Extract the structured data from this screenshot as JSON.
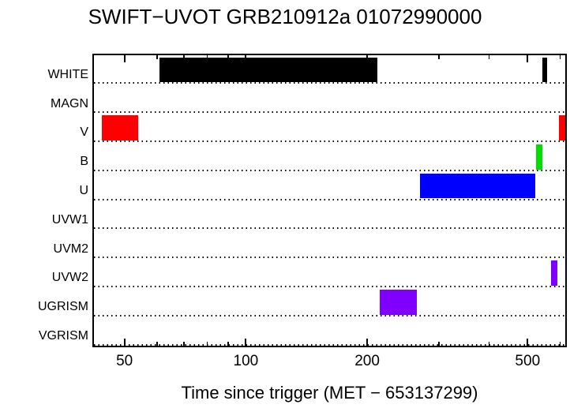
{
  "chart_data": {
    "type": "timeline",
    "title": "SWIFT−UVOT GRB210912a 01072990000",
    "xlabel": "Time since trigger (MET − 653137299)",
    "x_scale": "log",
    "x_range": [
      42,
      620
    ],
    "x_major_ticks": [
      50,
      100,
      200,
      500
    ],
    "x_minor_ticks": [
      60,
      70,
      80,
      90,
      300,
      400,
      600
    ],
    "grid": "dotted-horizontal",
    "legend": "none",
    "colors": {
      "white_filter": "#000000",
      "v_filter": "#ff0000",
      "b_filter": "#00dd00",
      "u_filter": "#0000ff",
      "uv_grism": "#7f00ff"
    },
    "rows": [
      {
        "label": "WHITE",
        "color": "#000000",
        "intervals": [
          [
            61,
            212
          ],
          [
            545,
            560
          ]
        ]
      },
      {
        "label": "MAGN",
        "color": "#000000",
        "intervals": []
      },
      {
        "label": "V",
        "color": "#ff0000",
        "intervals": [
          [
            44,
            54
          ],
          [
            598,
            620
          ]
        ]
      },
      {
        "label": "B",
        "color": "#00dd00",
        "intervals": [
          [
            525,
            544
          ]
        ]
      },
      {
        "label": "U",
        "color": "#0000ff",
        "intervals": [
          [
            271,
            523
          ]
        ]
      },
      {
        "label": "UVW1",
        "color": "#000000",
        "intervals": []
      },
      {
        "label": "UVM2",
        "color": "#000000",
        "intervals": []
      },
      {
        "label": "UVW2",
        "color": "#7f00ff",
        "intervals": [
          [
            572,
            592
          ]
        ]
      },
      {
        "label": "UGRISM",
        "color": "#7f00ff",
        "intervals": [
          [
            215,
            266
          ]
        ]
      },
      {
        "label": "VGRISM",
        "color": "#000000",
        "intervals": []
      }
    ]
  }
}
